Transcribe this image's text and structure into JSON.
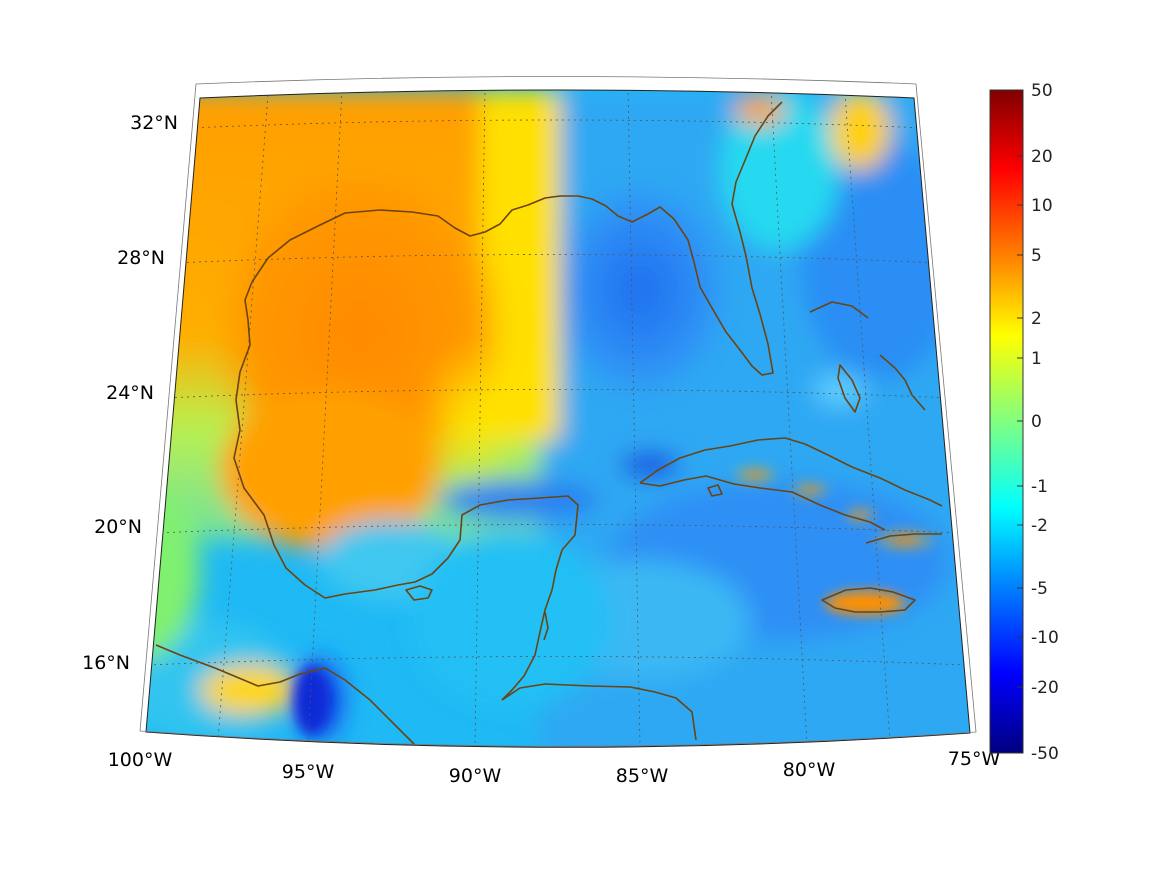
{
  "map": {
    "lon_labels": [
      "100°W",
      "95°W",
      "90°W",
      "85°W",
      "80°W",
      "75°W"
    ],
    "lat_labels": [
      "32°N",
      "28°N",
      "24°N",
      "20°N",
      "16°N"
    ],
    "coast_color": "#6b4413",
    "grid_style": "dotted",
    "colormap": "jet"
  },
  "colorbar": {
    "tick_labels": [
      "50",
      "20",
      "10",
      "5",
      "2",
      "1",
      "0",
      "-1",
      "-2",
      "-5",
      "-10",
      "-20",
      "-50"
    ]
  }
}
